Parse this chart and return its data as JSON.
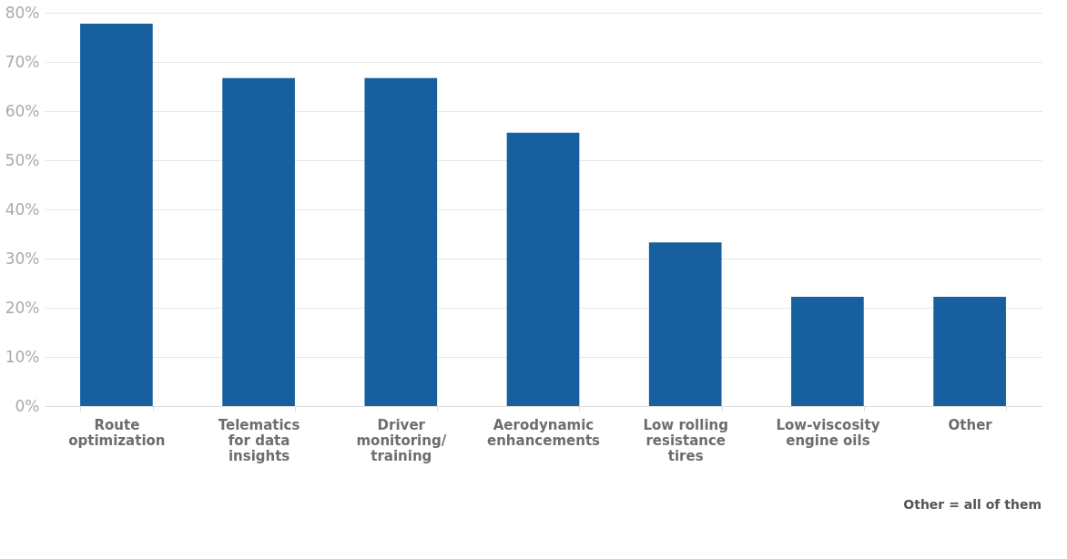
{
  "chart_data": {
    "type": "bar",
    "categories": [
      "Route\noptimization",
      "Telematics\nfor data\ninsights",
      "Driver\nmonitoring/\ntraining",
      "Aerodynamic\nenhancements",
      "Low rolling\nresistance\ntires",
      "Low-viscosity\nengine oils",
      "Other"
    ],
    "values": [
      77.8,
      66.7,
      66.7,
      55.6,
      33.3,
      22.2,
      22.2
    ],
    "color": "#17609f",
    "ylim": [
      0,
      80
    ],
    "yticks": [
      {
        "value": 0,
        "label": "0%"
      },
      {
        "value": 10,
        "label": "10%"
      },
      {
        "value": 20,
        "label": "20%"
      },
      {
        "value": 30,
        "label": "30%"
      },
      {
        "value": 40,
        "label": "40%"
      },
      {
        "value": 50,
        "label": "50%"
      },
      {
        "value": 60,
        "label": "60%"
      },
      {
        "value": 70,
        "label": "70%"
      },
      {
        "value": 80,
        "label": "80%"
      }
    ],
    "grid": "y",
    "annotations": [
      "Other = all of them"
    ]
  }
}
